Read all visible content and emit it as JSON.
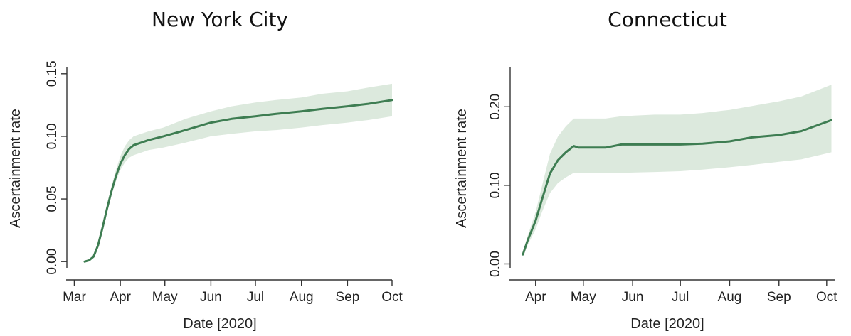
{
  "colors": {
    "line": "#3e7d52",
    "band": "#dce9dd"
  },
  "chart_data": [
    {
      "type": "line",
      "title": "New York City",
      "xlabel": "Date [2020]",
      "ylabel": "Ascertainment rate",
      "x_ticks": [
        {
          "label": "Mar",
          "x": "2020-03-01"
        },
        {
          "label": "Apr",
          "x": "2020-04-01"
        },
        {
          "label": "May",
          "x": "2020-05-01"
        },
        {
          "label": "Jun",
          "x": "2020-06-01"
        },
        {
          "label": "Jul",
          "x": "2020-07-01"
        },
        {
          "label": "Aug",
          "x": "2020-08-01"
        },
        {
          "label": "Sep",
          "x": "2020-09-01"
        },
        {
          "label": "Oct",
          "x": "2020-10-01"
        }
      ],
      "y_ticks": [
        {
          "label": "0.00",
          "y": 0
        },
        {
          "label": "0.05",
          "y": 0.05
        },
        {
          "label": "0.10",
          "y": 0.1
        },
        {
          "label": "0.15",
          "y": 0.15
        }
      ],
      "xlim": [
        "2020-02-25",
        "2020-10-01"
      ],
      "ylim": [
        -0.005,
        0.155
      ],
      "grid": false,
      "series": [
        {
          "x": [
            "2020-03-08",
            "2020-03-11",
            "2020-03-14",
            "2020-03-17",
            "2020-03-20",
            "2020-03-23",
            "2020-03-26",
            "2020-03-29",
            "2020-04-01",
            "2020-04-04",
            "2020-04-07",
            "2020-04-10",
            "2020-04-15",
            "2020-04-20",
            "2020-04-30",
            "2020-05-15",
            "2020-06-01",
            "2020-06-15",
            "2020-07-01",
            "2020-07-15",
            "2020-08-01",
            "2020-08-15",
            "2020-09-01",
            "2020-09-15",
            "2020-10-01"
          ],
          "y": [
            0.0,
            0.001,
            0.004,
            0.013,
            0.027,
            0.042,
            0.056,
            0.068,
            0.078,
            0.085,
            0.09,
            0.093,
            0.095,
            0.097,
            0.1,
            0.105,
            0.111,
            0.114,
            0.116,
            0.118,
            0.12,
            0.122,
            0.124,
            0.126,
            0.129
          ],
          "lower": [
            0.0,
            0.001,
            0.004,
            0.012,
            0.026,
            0.04,
            0.053,
            0.064,
            0.073,
            0.079,
            0.083,
            0.085,
            0.087,
            0.089,
            0.091,
            0.095,
            0.1,
            0.102,
            0.104,
            0.105,
            0.107,
            0.109,
            0.111,
            0.113,
            0.116
          ],
          "upper": [
            0.0,
            0.001,
            0.005,
            0.014,
            0.029,
            0.045,
            0.06,
            0.073,
            0.084,
            0.092,
            0.097,
            0.1,
            0.102,
            0.104,
            0.107,
            0.114,
            0.12,
            0.124,
            0.127,
            0.129,
            0.131,
            0.134,
            0.136,
            0.139,
            0.142
          ]
        }
      ]
    },
    {
      "type": "line",
      "title": "Connecticut",
      "xlabel": "Date [2020]",
      "ylabel": "Ascertainment rate",
      "x_ticks": [
        {
          "label": "Apr",
          "x": "2020-04-01"
        },
        {
          "label": "May",
          "x": "2020-05-01"
        },
        {
          "label": "Jun",
          "x": "2020-06-01"
        },
        {
          "label": "Jul",
          "x": "2020-07-01"
        },
        {
          "label": "Aug",
          "x": "2020-08-01"
        },
        {
          "label": "Sep",
          "x": "2020-09-01"
        },
        {
          "label": "Oct",
          "x": "2020-10-01"
        }
      ],
      "y_ticks": [
        {
          "label": "0.00",
          "y": 0
        },
        {
          "label": "0.10",
          "y": 0.1
        },
        {
          "label": "0.20",
          "y": 0.2
        }
      ],
      "xlim": [
        "2020-03-16",
        "2020-10-06"
      ],
      "ylim": [
        -0.005,
        0.25
      ],
      "grid": false,
      "series": [
        {
          "x": [
            "2020-03-24",
            "2020-03-27",
            "2020-04-01",
            "2020-04-05",
            "2020-04-10",
            "2020-04-15",
            "2020-04-20",
            "2020-04-25",
            "2020-04-28",
            "2020-05-05",
            "2020-05-15",
            "2020-05-25",
            "2020-06-15",
            "2020-07-01",
            "2020-07-15",
            "2020-08-01",
            "2020-08-15",
            "2020-09-01",
            "2020-09-15",
            "2020-10-04"
          ],
          "y": [
            0.012,
            0.03,
            0.055,
            0.082,
            0.115,
            0.132,
            0.142,
            0.15,
            0.148,
            0.148,
            0.148,
            0.152,
            0.152,
            0.152,
            0.153,
            0.156,
            0.161,
            0.164,
            0.169,
            0.183
          ],
          "lower": [
            0.01,
            0.024,
            0.044,
            0.066,
            0.09,
            0.103,
            0.11,
            0.116,
            0.116,
            0.116,
            0.116,
            0.116,
            0.117,
            0.118,
            0.12,
            0.123,
            0.126,
            0.13,
            0.133,
            0.142
          ],
          "upper": [
            0.014,
            0.036,
            0.066,
            0.099,
            0.14,
            0.162,
            0.175,
            0.185,
            0.185,
            0.185,
            0.185,
            0.188,
            0.19,
            0.19,
            0.192,
            0.196,
            0.201,
            0.207,
            0.213,
            0.228
          ]
        }
      ]
    }
  ]
}
